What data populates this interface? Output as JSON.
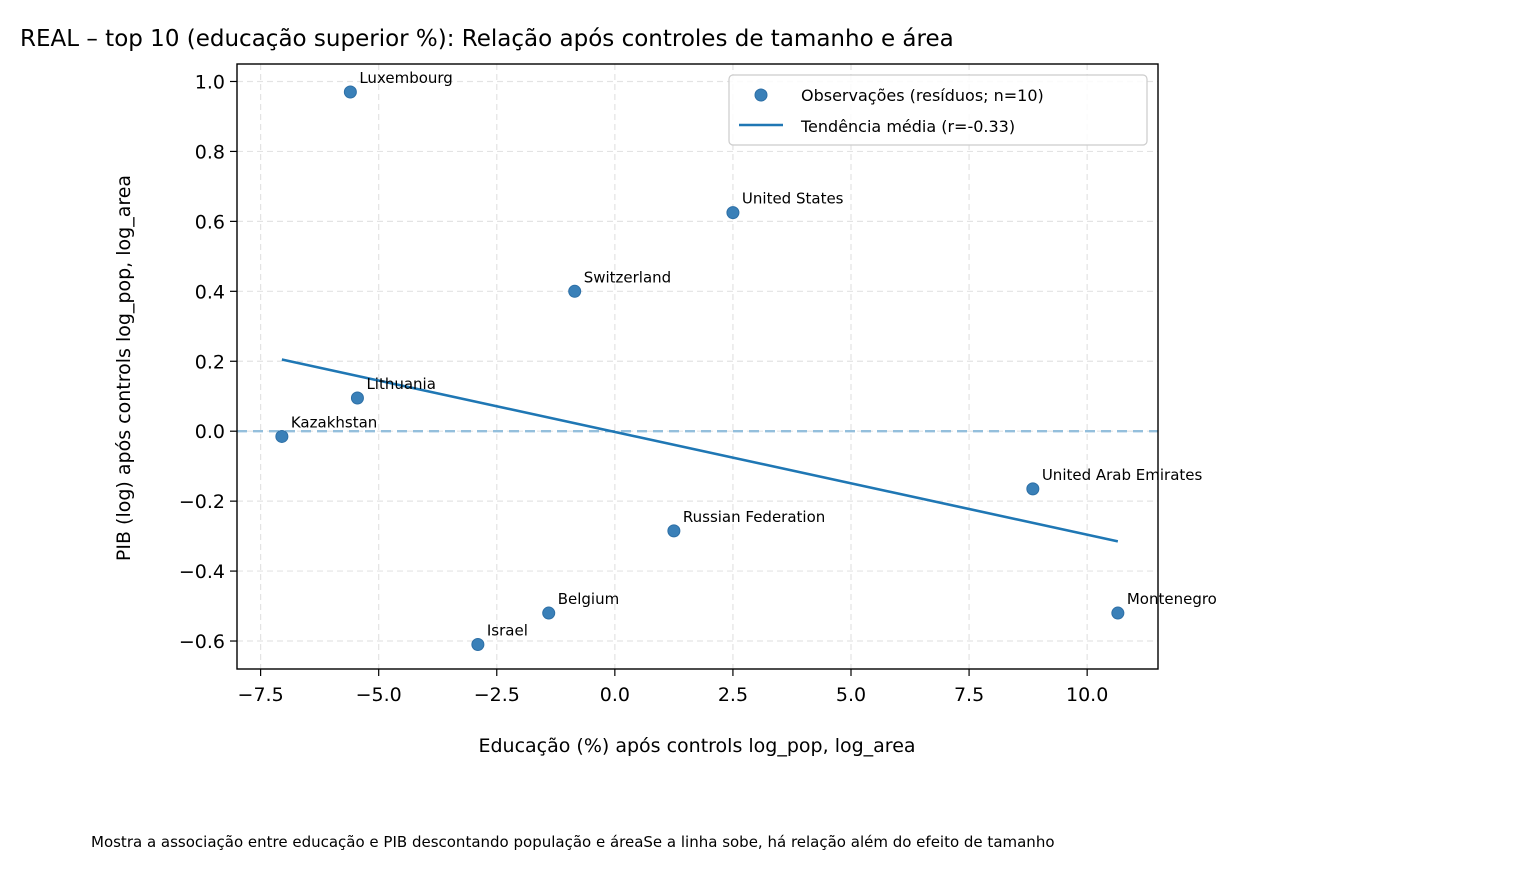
{
  "title": "REAL – top 10 (educação superior %): Relação após controles de tamanho e área",
  "caption": "Mostra a associação entre educação e PIB descontando população e áreaSe a linha sobe, há relação além do efeito de tamanho",
  "colors": {
    "points": "#3a80b8",
    "trend": "#1f77b4",
    "zero_line": "#94bfdc",
    "grid": "#e3e3e3"
  },
  "chart_data": {
    "type": "scatter",
    "xlabel": "Educação (%) após controls log_pop, log_area",
    "ylabel": "PIB (log) após controls log_pop, log_area",
    "xlim": [
      -8.0,
      11.5
    ],
    "ylim": [
      -0.68,
      1.05
    ],
    "xticks": [
      -7.5,
      -5.0,
      -2.5,
      0.0,
      2.5,
      5.0,
      7.5,
      10.0
    ],
    "xtick_labels": [
      "−7.5",
      "−5.0",
      "−2.5",
      "0.0",
      "2.5",
      "5.0",
      "7.5",
      "10.0"
    ],
    "yticks": [
      -0.6,
      -0.4,
      -0.2,
      0.0,
      0.2,
      0.4,
      0.6,
      0.8,
      1.0
    ],
    "ytick_labels": [
      "−0.6",
      "−0.4",
      "−0.2",
      "0.0",
      "0.2",
      "0.4",
      "0.6",
      "0.8",
      "1.0"
    ],
    "grid": true,
    "legend_position": "top-right",
    "series": [
      {
        "name": "Observações (resíduos; n=10)",
        "type": "scatter",
        "points": [
          {
            "label": "Luxembourg",
            "x": -5.6,
            "y": 0.97
          },
          {
            "label": "United States",
            "x": 2.5,
            "y": 0.625
          },
          {
            "label": "Switzerland",
            "x": -0.85,
            "y": 0.4
          },
          {
            "label": "Lithuania",
            "x": -5.45,
            "y": 0.095
          },
          {
            "label": "Kazakhstan",
            "x": -7.05,
            "y": -0.015
          },
          {
            "label": "United Arab Emirates",
            "x": 8.85,
            "y": -0.165
          },
          {
            "label": "Russian Federation",
            "x": 1.25,
            "y": -0.285
          },
          {
            "label": "Belgium",
            "x": -1.4,
            "y": -0.52
          },
          {
            "label": "Montenegro",
            "x": 10.65,
            "y": -0.52
          },
          {
            "label": "Israel",
            "x": -2.9,
            "y": -0.61
          }
        ]
      },
      {
        "name": "Tendência média (r=-0.33)",
        "type": "line",
        "x": [
          -7.05,
          10.65
        ],
        "y": [
          0.205,
          -0.315
        ]
      }
    ],
    "reference_line": {
      "axis": "y",
      "value": 0.0,
      "style": "dashed"
    }
  }
}
